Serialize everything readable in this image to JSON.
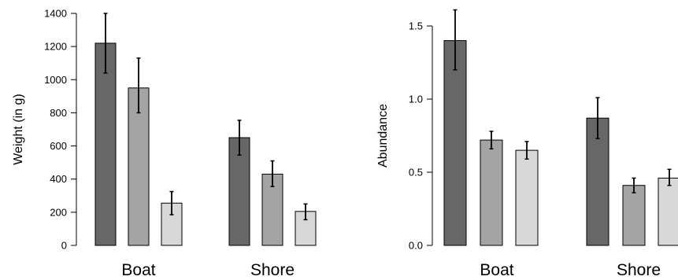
{
  "chart_data": [
    {
      "type": "bar",
      "title": "",
      "xlabel": "",
      "ylabel": "Weight (in g)",
      "ylim": [
        0,
        1400
      ],
      "yticks": [
        0,
        200,
        400,
        600,
        800,
        1000,
        1200,
        1400
      ],
      "ytick_labels": [
        "0",
        "200",
        "400",
        "600",
        "800",
        "1000",
        "1200",
        "1400"
      ],
      "categories": [
        "Boat",
        "Shore"
      ],
      "grid": false,
      "legend": "none",
      "series": [
        {
          "color": "#676767",
          "values": [
            1220,
            650
          ],
          "error_low": [
            1040,
            545
          ],
          "error_high": [
            1400,
            755
          ]
        },
        {
          "color": "#a4a4a4",
          "values": [
            950,
            430
          ],
          "error_low": [
            800,
            355
          ],
          "error_high": [
            1130,
            510
          ]
        },
        {
          "color": "#d8d8d8",
          "values": [
            255,
            205
          ],
          "error_low": [
            185,
            155
          ],
          "error_high": [
            325,
            250
          ]
        }
      ]
    },
    {
      "type": "bar",
      "title": "",
      "xlabel": "",
      "ylabel": "Abundance",
      "ylim": [
        0,
        1.6
      ],
      "yticks": [
        0,
        0.5,
        1.0,
        1.5
      ],
      "ytick_labels": [
        "0.0",
        "0.5",
        "1.0",
        "1.5"
      ],
      "categories": [
        "Boat",
        "Shore"
      ],
      "grid": false,
      "legend": "none",
      "series": [
        {
          "color": "#676767",
          "values": [
            1.4,
            0.87
          ],
          "error_low": [
            1.2,
            0.73
          ],
          "error_high": [
            1.61,
            1.01
          ]
        },
        {
          "color": "#a4a4a4",
          "values": [
            0.72,
            0.41
          ],
          "error_low": [
            0.66,
            0.36
          ],
          "error_high": [
            0.78,
            0.46
          ]
        },
        {
          "color": "#d8d8d8",
          "values": [
            0.65,
            0.46
          ],
          "error_low": [
            0.59,
            0.41
          ],
          "error_high": [
            0.71,
            0.52
          ]
        }
      ]
    }
  ]
}
